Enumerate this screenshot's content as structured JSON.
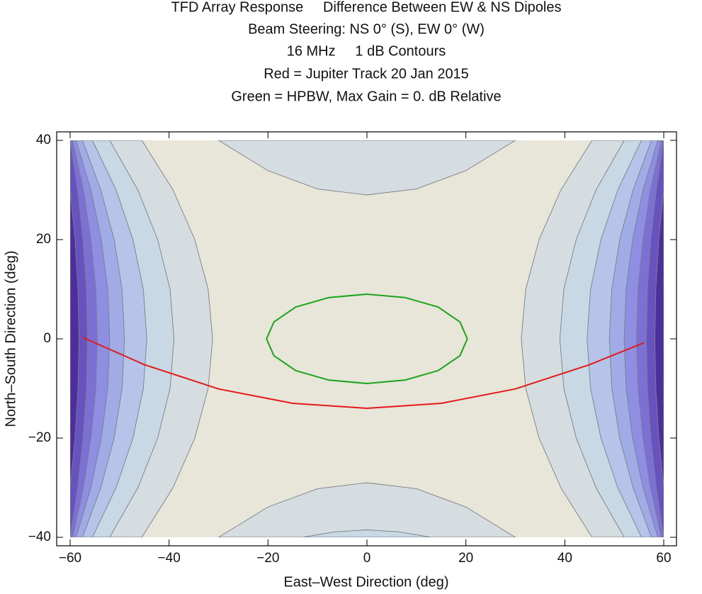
{
  "chart_data": {
    "type": "contour",
    "title": [
      "TFD Array Response     Difference Between EW & NS Dipoles",
      "Beam Steering: NS 0° (S), EW 0° (W)",
      "16 MHz     1 dB Contours",
      "Red = Jupiter Track 20 Jan 2015",
      "Green = HPBW, Max Gain = 0. dB Relative"
    ],
    "xlabel": "East–West Direction (deg)",
    "ylabel": "North–South Direction (deg)",
    "xlim": [
      -60,
      60
    ],
    "ylim": [
      -40,
      40
    ],
    "xticks": [
      {
        "value": -60,
        "label": "−60"
      },
      {
        "value": -40,
        "label": "−40"
      },
      {
        "value": -20,
        "label": "−20"
      },
      0,
      20,
      40,
      60
    ],
    "yticks": [
      {
        "value": -40,
        "label": "−40"
      },
      {
        "value": -20,
        "label": "−20"
      },
      0,
      20,
      40
    ],
    "background": "#e8e5d9",
    "contour_stroke": "#7a7f86",
    "contours": [
      {
        "color": "#d5dde0",
        "x": [
          -30,
          -20,
          -10,
          0,
          10,
          20,
          30
        ],
        "y": [
          40,
          33.9,
          30.2,
          29,
          30.2,
          33.9,
          40
        ]
      },
      {
        "color": "#d5dde0",
        "x": [
          -30,
          -20,
          -10,
          0,
          10,
          20,
          30
        ],
        "y": [
          -40,
          -33.9,
          -30.2,
          -29,
          -30.2,
          -33.9,
          -40
        ]
      },
      {
        "color": "#c8d8e5",
        "x": [
          -13,
          -6.5,
          0,
          6.5,
          13
        ],
        "y": [
          -40,
          -38.9,
          -38.5,
          -38.9,
          -40
        ]
      },
      {
        "color": "#d5dde0",
        "x": [
          -60,
          -45.5,
          -39.2,
          -34.8,
          -32.1,
          -31.2,
          -32.1,
          -34.8,
          -39.2,
          -45.5,
          -60
        ],
        "y": [
          40,
          40,
          30,
          20,
          10,
          0,
          -10,
          -20,
          -30,
          -40,
          -40
        ]
      },
      {
        "color": "#d5dde0",
        "x": [
          60,
          45.5,
          39.2,
          34.8,
          32.1,
          31.2,
          32.1,
          34.8,
          39.2,
          45.5,
          60
        ],
        "y": [
          40,
          40,
          30,
          20,
          10,
          0,
          -10,
          -20,
          -30,
          -40,
          -40
        ]
      },
      {
        "color": "#c8d8e5",
        "x": [
          -60,
          -52,
          -46.3,
          -42.3,
          -39.8,
          -39,
          -39.8,
          -42.3,
          -46.3,
          -52,
          -60
        ],
        "y": [
          40,
          40,
          30,
          20,
          10,
          0,
          -10,
          -20,
          -30,
          -40,
          -40
        ]
      },
      {
        "color": "#c8d8e5",
        "x": [
          60,
          52,
          46.3,
          42.3,
          39.8,
          39,
          39.8,
          42.3,
          46.3,
          52,
          60
        ],
        "y": [
          40,
          40,
          30,
          20,
          10,
          0,
          -10,
          -20,
          -30,
          -40,
          -40
        ]
      },
      {
        "color": "#b5c4e8",
        "x": [
          -60,
          -55.5,
          -50.7,
          -47.3,
          -45.2,
          -44.5,
          -45.2,
          -47.3,
          -50.7,
          -55.5,
          -60
        ],
        "y": [
          40,
          40,
          30,
          20,
          10,
          0,
          -10,
          -20,
          -30,
          -40,
          -40
        ]
      },
      {
        "color": "#b5c4e8",
        "x": [
          60,
          55.5,
          50.7,
          47.3,
          45.2,
          44.5,
          45.2,
          47.3,
          50.7,
          55.5,
          60
        ],
        "y": [
          40,
          40,
          30,
          20,
          10,
          0,
          -10,
          -20,
          -30,
          -40,
          -40
        ]
      },
      {
        "color": "#a1abe6",
        "x": [
          -60,
          -57.5,
          -53.8,
          -51.1,
          -49.5,
          -49,
          -49.5,
          -51.1,
          -53.8,
          -57.5,
          -60
        ],
        "y": [
          40,
          40,
          30,
          20,
          10,
          0,
          -10,
          -20,
          -30,
          -40,
          -40
        ]
      },
      {
        "color": "#a1abe6",
        "x": [
          60,
          57.5,
          53.8,
          51.1,
          49.5,
          49,
          49.5,
          51.1,
          53.8,
          57.5,
          60
        ],
        "y": [
          40,
          40,
          30,
          20,
          10,
          0,
          -10,
          -20,
          -30,
          -40,
          -40
        ]
      },
      {
        "color": "#8e8ee2",
        "x": [
          -60,
          -58.8,
          -55.8,
          -53.7,
          -52.4,
          -52,
          -52.4,
          -53.7,
          -55.8,
          -58.8,
          -60
        ],
        "y": [
          40,
          40,
          30,
          20,
          10,
          0,
          -10,
          -20,
          -30,
          -40,
          -40
        ]
      },
      {
        "color": "#8e8ee2",
        "x": [
          60,
          58.8,
          55.8,
          53.7,
          52.4,
          52,
          52.4,
          53.7,
          55.8,
          58.8,
          60
        ],
        "y": [
          40,
          40,
          30,
          20,
          10,
          0,
          -10,
          -20,
          -30,
          -40,
          -40
        ]
      },
      {
        "color": "#7c70d5",
        "x": [
          -60,
          -59.5,
          -57.3,
          -55.8,
          -54.8,
          -54.5,
          -54.8,
          -55.8,
          -57.3,
          -59.5,
          -60
        ],
        "y": [
          40,
          40,
          30,
          20,
          10,
          0,
          -10,
          -20,
          -30,
          -40,
          -40
        ]
      },
      {
        "color": "#7c70d5",
        "x": [
          60,
          59.5,
          57.3,
          55.8,
          54.8,
          54.5,
          54.8,
          55.8,
          57.3,
          59.5,
          60
        ],
        "y": [
          40,
          40,
          30,
          20,
          10,
          0,
          -10,
          -20,
          -30,
          -40,
          -40
        ]
      },
      {
        "color": "#6852bf",
        "x": [
          -60,
          -58.5,
          -57.4,
          -56.7,
          -56.5,
          -56.7,
          -57.4,
          -58.5,
          -60
        ],
        "y": [
          40,
          30,
          20,
          10,
          0,
          -10,
          -20,
          -30,
          -40
        ]
      },
      {
        "color": "#6852bf",
        "x": [
          60,
          58.5,
          57.4,
          56.7,
          56.5,
          56.7,
          57.4,
          58.5,
          60
        ],
        "y": [
          40,
          30,
          20,
          10,
          0,
          -10,
          -20,
          -30,
          -40
        ]
      },
      {
        "color": "#4d2f9c",
        "x": [
          -60,
          -59,
          -58.4,
          -58.2,
          -58.4,
          -59,
          -60
        ],
        "y": [
          30,
          20,
          10,
          0,
          -10,
          -20,
          -30
        ]
      },
      {
        "color": "#4d2f9c",
        "x": [
          60,
          59,
          58.4,
          58.2,
          58.4,
          59,
          60
        ],
        "y": [
          30,
          20,
          10,
          0,
          -10,
          -20,
          -30
        ]
      }
    ],
    "lines": [
      {
        "color": "#19a519",
        "x": [
          20.3,
          18.8,
          14.4,
          7.8,
          0,
          -7.8,
          -14.4,
          -18.8,
          -20.3,
          -18.8,
          -14.4,
          -7.8,
          0,
          7.8,
          14.4,
          18.8,
          20.3
        ],
        "y": [
          0,
          3.4,
          6.4,
          8.3,
          9,
          8.3,
          6.4,
          3.4,
          0,
          -3.4,
          -6.4,
          -8.3,
          -9,
          -8.3,
          -6.4,
          -3.4,
          0
        ]
      },
      {
        "color": "#e31a1a",
        "x": [
          -57.5,
          -45,
          -30,
          -15,
          0,
          15,
          30,
          45,
          56
        ],
        "y": [
          0.3,
          -5.2,
          -10.1,
          -13.0,
          -14,
          -13.0,
          -10.1,
          -5.2,
          -0.8
        ]
      }
    ]
  }
}
